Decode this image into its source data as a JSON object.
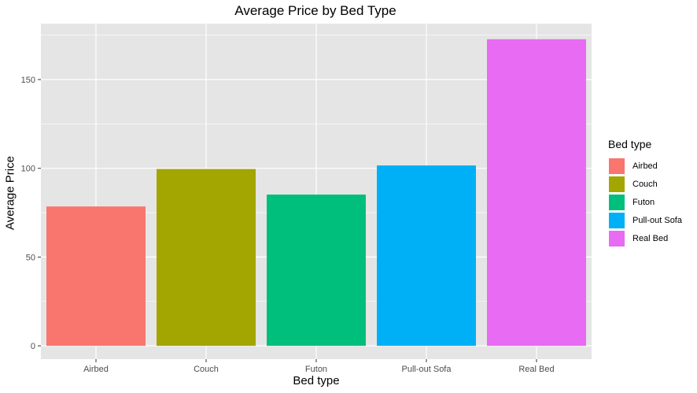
{
  "chart_data": {
    "type": "bar",
    "title": "Average Price by Bed Type",
    "xlabel": "Bed type",
    "ylabel": "Average Price",
    "categories": [
      "Airbed",
      "Couch",
      "Futon",
      "Pull-out Sofa",
      "Real Bed"
    ],
    "values": [
      78.5,
      99.6,
      85.2,
      101.6,
      172.7
    ],
    "colors": [
      "#F8766D",
      "#A3A500",
      "#00BF7D",
      "#00B0F6",
      "#E76BF3"
    ],
    "ylim": [
      -7.5,
      181.5
    ],
    "yticks": [
      0,
      50,
      100,
      150
    ],
    "ytick_labels": [
      "0",
      "50",
      "100",
      "150"
    ],
    "grid": true,
    "panel_background": "#E5E5E5",
    "grid_color": "#FFFFFF",
    "legend": {
      "title": "Bed type",
      "placement": "right",
      "items": [
        "Airbed",
        "Couch",
        "Futon",
        "Pull-out Sofa",
        "Real Bed"
      ]
    }
  }
}
